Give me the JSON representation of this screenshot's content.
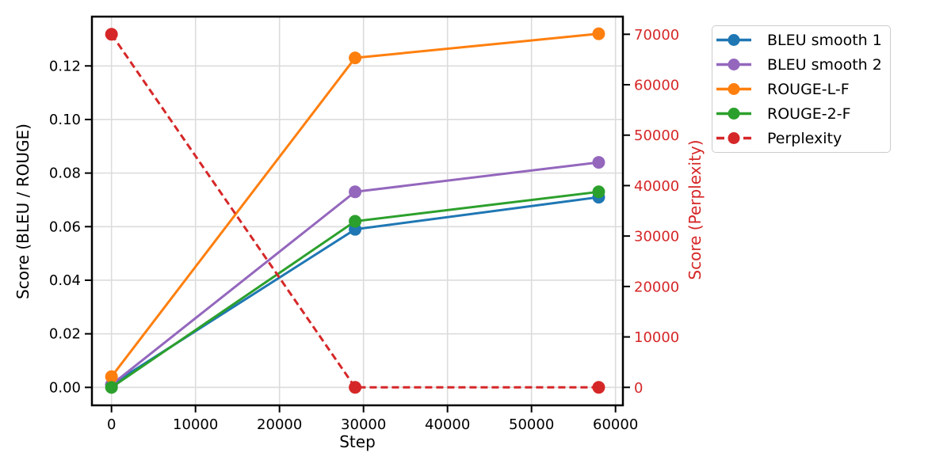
{
  "chart_data": {
    "type": "line",
    "title": "",
    "xlabel": "Step",
    "ylabel_left": "Score (BLEU / ROUGE)",
    "ylabel_right": "Score (Perplexity)",
    "grid": true,
    "legend_position": "upper right, outside plot",
    "x": [
      0,
      29000,
      58000
    ],
    "x_ticks": [
      0,
      10000,
      20000,
      30000,
      40000,
      50000,
      60000
    ],
    "y_ticks_left": [
      0.0,
      0.02,
      0.04,
      0.06,
      0.08,
      0.1,
      0.12
    ],
    "y_ticks_right": [
      0,
      10000,
      20000,
      30000,
      40000,
      50000,
      60000,
      70000
    ],
    "xlim": [
      -2330,
      60880
    ],
    "ylim_left": [
      -0.0067,
      0.1384
    ],
    "ylim_right": [
      -3563,
      73500
    ],
    "series": [
      {
        "name": "BLEU smooth 1",
        "axis": "left",
        "color": "#1f77b4",
        "style": "solid",
        "values": [
          0.001,
          0.059,
          0.071
        ]
      },
      {
        "name": "BLEU smooth 2",
        "axis": "left",
        "color": "#9467bd",
        "style": "solid",
        "values": [
          0.001,
          0.073,
          0.084
        ]
      },
      {
        "name": "ROUGE-L-F",
        "axis": "left",
        "color": "#ff7f0e",
        "style": "solid",
        "values": [
          0.004,
          0.123,
          0.132
        ]
      },
      {
        "name": "ROUGE-2-F",
        "axis": "left",
        "color": "#2ca02c",
        "style": "solid",
        "values": [
          0.0,
          0.062,
          0.073
        ]
      },
      {
        "name": "Perplexity",
        "axis": "right",
        "color": "#d62728",
        "style": "dashed",
        "values": [
          70000,
          0,
          0
        ]
      }
    ],
    "colors": {
      "right_axis_text": "#d62728",
      "grid": "#dcdcdc",
      "spine": "#000000",
      "tick_text": "#000000"
    }
  }
}
